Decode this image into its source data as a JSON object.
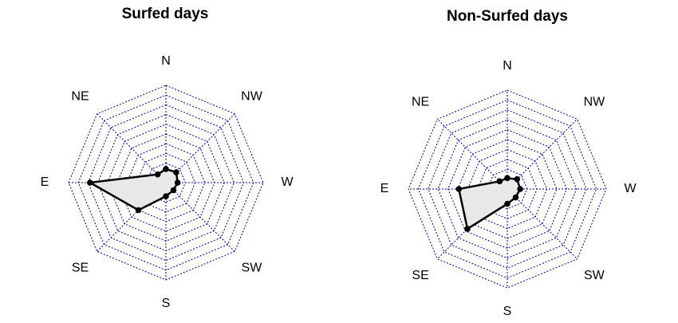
{
  "chart_data": [
    {
      "type": "radar",
      "title": "Surfed days",
      "categories": [
        "N",
        "NW",
        "W",
        "SW",
        "S",
        "SE",
        "E",
        "NE"
      ],
      "values": [
        1.4,
        1.5,
        1.2,
        1.1,
        1.4,
        4.0,
        7.8,
        1.2
      ],
      "rlim": [
        0,
        10
      ],
      "grid_rings": [
        1,
        2,
        3,
        4,
        5,
        6,
        7,
        8,
        9,
        10
      ],
      "grid_color": "#00008b",
      "color": "#000000",
      "fill": "#e8e8e8"
    },
    {
      "type": "radar",
      "title": "Non-Surfed days",
      "categories": [
        "N",
        "NW",
        "W",
        "SW",
        "S",
        "SE",
        "E",
        "NE"
      ],
      "values": [
        1.1,
        1.4,
        1.3,
        1.2,
        1.5,
        5.7,
        4.9,
        1.1
      ],
      "rlim": [
        0,
        10
      ],
      "grid_rings": [
        1,
        2,
        3,
        4,
        5,
        6,
        7,
        8,
        9,
        10
      ],
      "grid_color": "#00008b",
      "color": "#000000",
      "fill": "#e8e8e8"
    }
  ]
}
